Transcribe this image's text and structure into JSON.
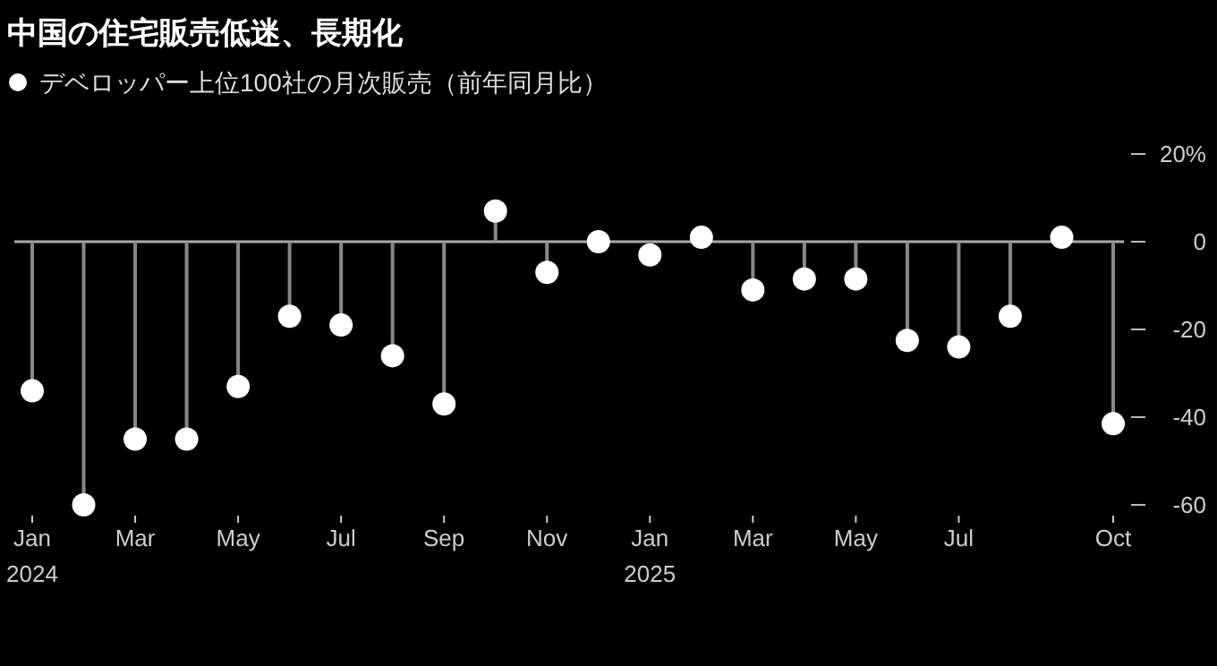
{
  "chart_data": {
    "type": "lollipop",
    "title": "中国の住宅販売低迷、長期化",
    "categories": [
      "Jan 2024",
      null,
      "Mar",
      null,
      "May",
      null,
      "Jul",
      null,
      "Sep",
      null,
      "Nov",
      null,
      "Jan 2025",
      null,
      "Mar",
      null,
      "May",
      null,
      "Jul",
      null,
      null,
      "Oct"
    ],
    "series": [
      {
        "name": "デベロッパー上位100社の月次販売（前年同月比）",
        "color": "#ffffff",
        "values": [
          -34,
          -60,
          -45,
          -45,
          -33,
          -17,
          -19,
          -26,
          -37,
          7,
          -7,
          0,
          -3,
          1,
          -11,
          -8.5,
          -8.5,
          -22.5,
          -24,
          -17,
          1,
          -41.5
        ]
      }
    ],
    "ylim": [
      -60,
      20
    ],
    "ref_lines": [
      {
        "axis": "y",
        "value": 0,
        "color": "#aaaaaa"
      }
    ],
    "yticks": [
      {
        "value": 20,
        "label": "20%"
      },
      0,
      -20,
      -40,
      -60
    ],
    "legend": "top left",
    "marker": "circle",
    "grid": false
  }
}
